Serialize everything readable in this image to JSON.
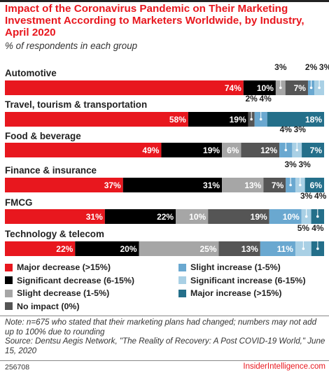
{
  "header": {
    "title": "Impact of the Coronavirus Pandemic on Their Marketing Investment According to Marketers Worldwide, by Industry, April 2020",
    "subtitle": "% of respondents in each group"
  },
  "chart_data": {
    "type": "bar",
    "orientation": "horizontal",
    "stacked": true,
    "unit": "%",
    "xlim": [
      0,
      100
    ],
    "categories": [
      "Automotive",
      "Travel, tourism & transportation",
      "Food & beverage",
      "Finance & insurance",
      "FMCG",
      "Technology & telecom"
    ],
    "series": [
      {
        "name": "Major decrease (>15%)",
        "color": "#e8171e",
        "values": [
          74,
          58,
          49,
          37,
          31,
          22
        ]
      },
      {
        "name": "Significant decrease (6-15%)",
        "color": "#000000",
        "values": [
          10,
          19,
          19,
          31,
          22,
          20
        ]
      },
      {
        "name": "Slight decrease (1-5%)",
        "color": "#a6a6a6",
        "values": [
          3,
          0,
          6,
          13,
          10,
          25
        ]
      },
      {
        "name": "No impact (0%)",
        "color": "#555555",
        "values": [
          7,
          2,
          12,
          7,
          19,
          13
        ]
      },
      {
        "name": "Slight increase (1-5%)",
        "color": "#6aa8d0",
        "values": [
          2,
          4,
          4,
          3,
          10,
          11
        ]
      },
      {
        "name": "Significant increase (6-15%)",
        "color": "#a9d0e5",
        "values": [
          3,
          0,
          3,
          3,
          3,
          5
        ]
      },
      {
        "name": "Major increase (>15%)",
        "color": "#246f8a",
        "values": [
          0,
          18,
          7,
          6,
          4,
          4
        ]
      }
    ],
    "labels": [
      [
        "74%",
        "10%",
        "3%",
        "7%",
        "2%",
        "3%",
        ""
      ],
      [
        "58%",
        "19%",
        "",
        "2%",
        "4%",
        "",
        "18%"
      ],
      [
        "49%",
        "19%",
        "6%",
        "12%",
        "4%",
        "3%",
        "7%"
      ],
      [
        "37%",
        "31%",
        "13%",
        "7%",
        "3%",
        "3%",
        "6%"
      ],
      [
        "31%",
        "22%",
        "10%",
        "19%",
        "10%",
        "3%",
        "4%"
      ],
      [
        "22%",
        "20%",
        "25%",
        "13%",
        "11%",
        "5%",
        "4%"
      ]
    ],
    "legend_position": "bottom",
    "legend_order": [
      0,
      4,
      1,
      5,
      2,
      6,
      3
    ]
  },
  "note": "Note: n=675 who stated that their marketing plans had changed; numbers may not add up to 100% due to rounding",
  "source": "Source: Dentsu Aegis Network, \"The Reality of Recovery: A Post COVID-19 World,\" June 15, 2020",
  "footer": {
    "chart_id": "256708",
    "brand": "InsiderIntelligence.com"
  }
}
